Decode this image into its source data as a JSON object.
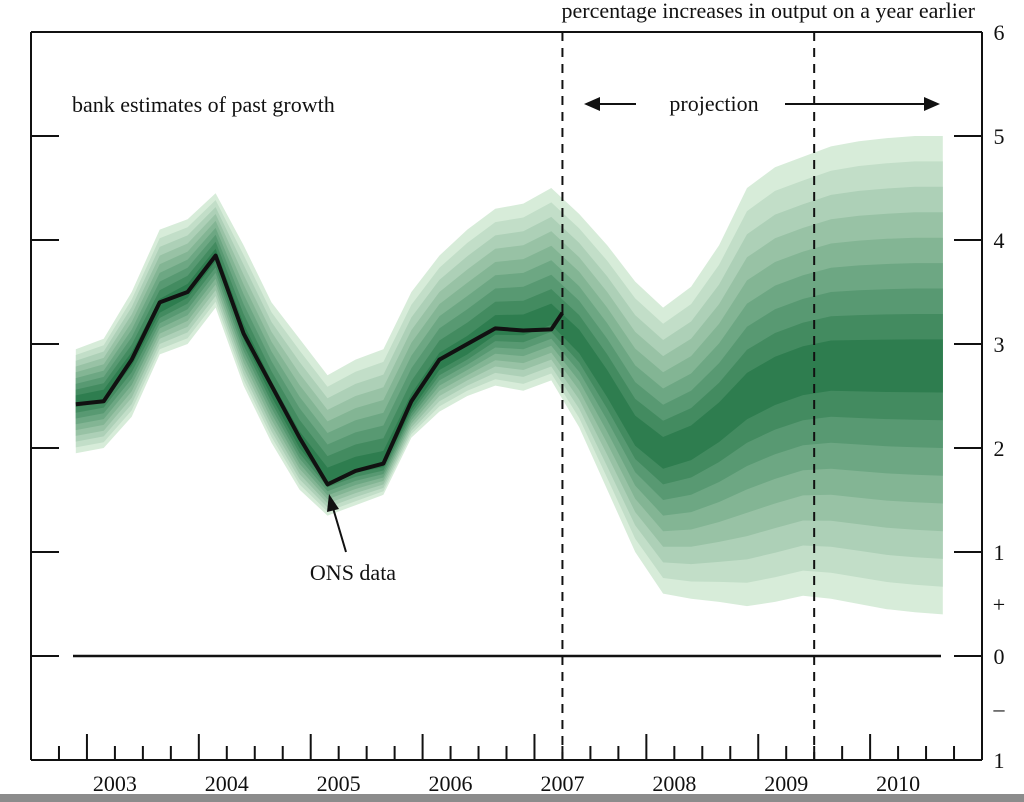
{
  "chart_data": {
    "type": "area",
    "title": "percentage increases in output on a year earlier",
    "xlabel": "",
    "ylabel": "",
    "ylim": [
      -1,
      6
    ],
    "xlim": [
      2002.5,
      2011.0
    ],
    "y_ticks": [
      {
        "value": 6,
        "label": "6"
      },
      {
        "value": 5,
        "label": "5"
      },
      {
        "value": 4,
        "label": "4"
      },
      {
        "value": 3,
        "label": "3"
      },
      {
        "value": 2,
        "label": "2"
      },
      {
        "value": 1,
        "label": "1"
      },
      {
        "value": 0.5,
        "label": "+"
      },
      {
        "value": 0,
        "label": "0"
      },
      {
        "value": -0.5,
        "label": "–"
      },
      {
        "value": -1,
        "label": "1"
      }
    ],
    "x_tick_labels": [
      {
        "value": 2003.25,
        "label": "2003"
      },
      {
        "value": 2004.25,
        "label": "2004"
      },
      {
        "value": 2005.25,
        "label": "2005"
      },
      {
        "value": 2006.25,
        "label": "2006"
      },
      {
        "value": 2007.25,
        "label": "2007"
      },
      {
        "value": 2008.25,
        "label": "2008"
      },
      {
        "value": 2009.25,
        "label": "2009"
      },
      {
        "value": 2010.25,
        "label": "2010"
      }
    ],
    "vertical_lines": [
      2007.25,
      2009.5
    ],
    "annotations": {
      "left": "bank estimates of past growth",
      "projection": "projection",
      "ons": "ONS data"
    },
    "fan": {
      "x": [
        2002.9,
        2003.15,
        2003.4,
        2003.65,
        2003.9,
        2004.15,
        2004.4,
        2004.65,
        2004.9,
        2005.15,
        2005.4,
        2005.65,
        2005.9,
        2006.15,
        2006.4,
        2006.65,
        2006.9,
        2007.15,
        2007.4,
        2007.65,
        2007.9,
        2008.15,
        2008.4,
        2008.65,
        2008.9,
        2009.15,
        2009.4,
        2009.65,
        2009.9,
        2010.15,
        2010.4,
        2010.65
      ],
      "central": [
        2.45,
        2.5,
        2.85,
        3.35,
        3.5,
        3.85,
        3.1,
        2.55,
        2.05,
        1.7,
        1.8,
        1.85,
        2.4,
        2.8,
        2.95,
        3.15,
        3.15,
        3.25,
        3.0,
        2.6,
        2.15,
        1.95,
        2.05,
        2.25,
        2.5,
        2.65,
        2.75,
        2.8,
        2.8,
        2.8,
        2.8,
        2.8
      ],
      "upper": [
        2.95,
        3.05,
        3.5,
        4.1,
        4.2,
        4.45,
        3.95,
        3.4,
        3.05,
        2.7,
        2.85,
        2.95,
        3.5,
        3.85,
        4.1,
        4.3,
        4.35,
        4.5,
        4.25,
        3.95,
        3.6,
        3.35,
        3.55,
        3.95,
        4.5,
        4.7,
        4.8,
        4.9,
        4.95,
        4.98,
        5.0,
        5.0
      ],
      "lower": [
        1.95,
        2.0,
        2.3,
        2.9,
        3.0,
        3.35,
        2.6,
        2.05,
        1.6,
        1.35,
        1.45,
        1.55,
        2.1,
        2.35,
        2.5,
        2.6,
        2.55,
        2.65,
        2.2,
        1.6,
        1.0,
        0.6,
        0.55,
        0.52,
        0.48,
        0.52,
        0.58,
        0.55,
        0.5,
        0.45,
        0.42,
        0.4
      ]
    },
    "series": [
      {
        "name": "ONS data",
        "x": [
          2002.9,
          2003.15,
          2003.4,
          2003.65,
          2003.9,
          2004.15,
          2004.4,
          2004.65,
          2004.9,
          2005.15,
          2005.4,
          2005.65,
          2005.9,
          2006.15,
          2006.4,
          2006.65,
          2006.9,
          2007.15,
          2007.25
        ],
        "values": [
          2.42,
          2.45,
          2.85,
          3.4,
          3.5,
          3.85,
          3.1,
          2.6,
          2.1,
          1.65,
          1.78,
          1.85,
          2.45,
          2.85,
          3.0,
          3.15,
          3.13,
          3.14,
          3.3
        ]
      }
    ],
    "colors": {
      "fan_light": "#d7ecd9",
      "fan_dark": "#2e7d4f",
      "line": "#111111"
    }
  }
}
